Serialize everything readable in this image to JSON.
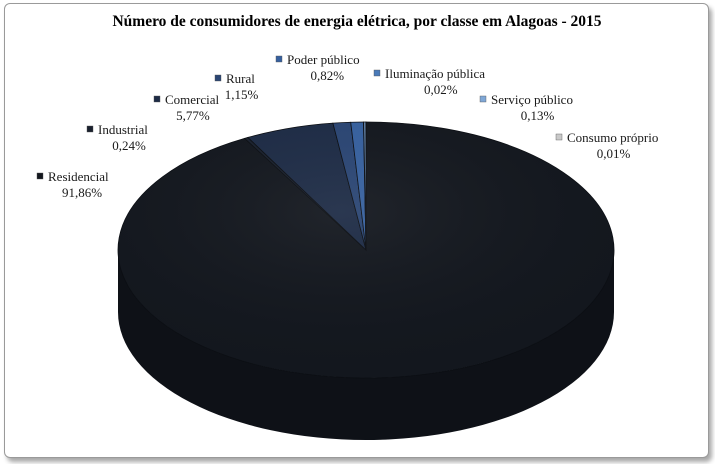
{
  "chart_data": {
    "type": "pie",
    "title": "Número de consumidores de energia elétrica, por classe em Alagoas - 2015",
    "slices": [
      {
        "label": "Residencial",
        "value_label": "91,86%",
        "value": 91.86,
        "color": "#13171e"
      },
      {
        "label": "Industrial",
        "value_label": "0,24%",
        "value": 0.24,
        "color": "#19202d"
      },
      {
        "label": "Comercial",
        "value_label": "5,77%",
        "value": 5.77,
        "color": "#1d2b45"
      },
      {
        "label": "Rural",
        "value_label": "1,15%",
        "value": 1.15,
        "color": "#2a4573"
      },
      {
        "label": "Poder público",
        "value_label": "0,82%",
        "value": 0.82,
        "color": "#36609e"
      },
      {
        "label": "Iluminação pública",
        "value_label": "0,02%",
        "value": 0.02,
        "color": "#4a7ab8"
      },
      {
        "label": "Serviço público",
        "value_label": "0,13%",
        "value": 0.13,
        "color": "#7fa7d6"
      },
      {
        "label": "Consumo próprio",
        "value_label": "0,01%",
        "value": 0.01,
        "color": "#c9c9c9"
      }
    ]
  }
}
